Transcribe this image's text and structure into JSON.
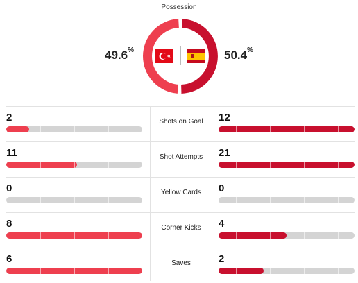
{
  "possession": {
    "title": "Possession",
    "home": {
      "value": 49.6,
      "number": "49.6",
      "unit": "%",
      "flag": "turkey-flag-icon",
      "color": "#ee3f4f"
    },
    "away": {
      "value": 50.4,
      "number": "50.4",
      "unit": "%",
      "flag": "spain-flag-icon",
      "color": "#c8102e"
    }
  },
  "colors": {
    "track": "#d4d4d4",
    "home": "#ee3f4f",
    "away": "#c8102e"
  },
  "stats": [
    {
      "label": "Shots on Goal",
      "home": "2",
      "away": "12",
      "home_fill": 0.17,
      "away_fill": 1.0
    },
    {
      "label": "Shot Attempts",
      "home": "11",
      "away": "21",
      "home_fill": 0.52,
      "away_fill": 1.0
    },
    {
      "label": "Yellow Cards",
      "home": "0",
      "away": "0",
      "home_fill": 0.0,
      "away_fill": 0.0
    },
    {
      "label": "Corner Kicks",
      "home": "8",
      "away": "4",
      "home_fill": 1.0,
      "away_fill": 0.5
    },
    {
      "label": "Saves",
      "home": "6",
      "away": "2",
      "home_fill": 1.0,
      "away_fill": 0.33
    }
  ]
}
